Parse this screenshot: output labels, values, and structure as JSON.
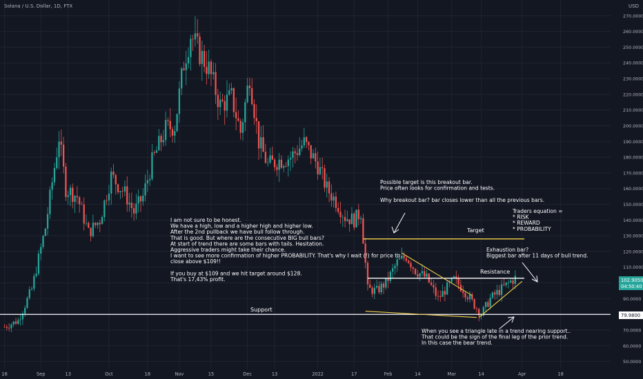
{
  "header": {
    "title": "Solana / U.S. Dollar, 1D, FTX"
  },
  "axis": {
    "currency": "USD"
  },
  "colors": {
    "background": "#131722",
    "up": "#26a69a",
    "down": "#ef5350",
    "grid": "#1f2433",
    "axis_text": "#b2b5be",
    "annotation_text": "#ffffff",
    "target_line": "#f5d14b",
    "triangle_line": "#f5d14b",
    "support_line": "#ffffff",
    "resistance_line": "#ffffff",
    "price_tag_bg": "#26a69a"
  },
  "price_labels": {
    "current": "102.9050",
    "countdown": "04:50:40",
    "support": "79.9800"
  },
  "annotations": {
    "support_label": "Support",
    "target_label": "Target",
    "resistance_label": "Resistance",
    "main_note": [
      "I am not sure to be honest.",
      "We have a high, low and a higher high and higher low.",
      "After the 2nd pullback we have bull follow through.",
      "That is good. But where are the consecutive BIG bull bars?",
      "At start of trend there are some bars with tails. Hesitation.",
      "Aggressive traders might take their chance.",
      "I want to see more confirmation of higher PROBABILITY. That's why I wait (!) for price to",
      "close above $109!!",
      "",
      "If you buy at $109 and we hit target around $128.",
      "That's 17,43% profit."
    ],
    "breakout_note": [
      "Possible target is this breakout bar.",
      "Price often looks for confirmation and tests.",
      "",
      "Why breakout bar? bar closes lower than all the previous bars."
    ],
    "equation_note": [
      "Traders equation =",
      "* RISK",
      "* REWARD",
      "* PROBABILITY"
    ],
    "exhaustion_note": [
      "Exhaustion bar?",
      "Biggest bar after 11 days of bull trend."
    ],
    "triangle_note": [
      "When you see a triangle late in a trend nearing support..",
      "That could be the sign of the final leg of the prior trend.",
      "In this case the bear trend."
    ]
  },
  "chart_data": {
    "type": "candlestick",
    "title": "Solana / U.S. Dollar, 1D, FTX",
    "y_axis": {
      "ylim": [
        45,
        280
      ],
      "ticks": [
        50,
        60,
        70,
        80,
        90,
        100,
        110,
        120,
        130,
        140,
        150,
        160,
        170,
        180,
        190,
        200,
        210,
        220,
        230,
        240,
        250,
        260,
        270
      ],
      "tick_labels": [
        "50.0000",
        "60.0000",
        "70.0000",
        "80.0000",
        "90.0000",
        "100.0000",
        "110.0000",
        "120.0000",
        "130.0000",
        "140.0000",
        "150.0000",
        "160.0000",
        "170.0000",
        "180.0000",
        "190.0000",
        "200.0000",
        "210.0000",
        "220.0000",
        "230.0000",
        "240.0000",
        "250.0000",
        "260.0000",
        "270.0000"
      ],
      "side": "right"
    },
    "x_axis": {
      "tick_labels": [
        "16",
        "Sep",
        "13",
        "Oct",
        "18",
        "Nov",
        "15",
        "Dec",
        "13",
        "2022",
        "17",
        "Feb",
        "14",
        "Mar",
        "14",
        "Apr",
        "18"
      ],
      "tick_dates": [
        "2021-08-16",
        "2021-09-01",
        "2021-09-13",
        "2021-10-01",
        "2021-10-18",
        "2021-11-01",
        "2021-11-15",
        "2021-12-01",
        "2021-12-13",
        "2022-01-01",
        "2022-01-17",
        "2022-02-01",
        "2022-02-14",
        "2022-03-01",
        "2022-03-14",
        "2022-04-01",
        "2022-04-18"
      ],
      "range": [
        "2021-08-14",
        "2022-05-10"
      ]
    },
    "series_path": [
      [
        "2021-08-16",
        72
      ],
      [
        "2021-08-22",
        76
      ],
      [
        "2021-08-28",
        96
      ],
      [
        "2021-09-03",
        135
      ],
      [
        "2021-09-09",
        193
      ],
      [
        "2021-09-12",
        160
      ],
      [
        "2021-09-17",
        155
      ],
      [
        "2021-09-22",
        132
      ],
      [
        "2021-09-27",
        140
      ],
      [
        "2021-10-02",
        168
      ],
      [
        "2021-10-08",
        157
      ],
      [
        "2021-10-12",
        145
      ],
      [
        "2021-10-16",
        155
      ],
      [
        "2021-10-20",
        177
      ],
      [
        "2021-10-26",
        198
      ],
      [
        "2021-10-30",
        200
      ],
      [
        "2021-11-03",
        240
      ],
      [
        "2021-11-06",
        258
      ],
      [
        "2021-11-09",
        249
      ],
      [
        "2021-11-14",
        236
      ],
      [
        "2021-11-19",
        213
      ],
      [
        "2021-11-24",
        218
      ],
      [
        "2021-11-28",
        196
      ],
      [
        "2021-12-02",
        232
      ],
      [
        "2021-12-06",
        190
      ],
      [
        "2021-12-10",
        175
      ],
      [
        "2021-12-15",
        178
      ],
      [
        "2021-12-20",
        180
      ],
      [
        "2021-12-26",
        189
      ],
      [
        "2022-01-01",
        175
      ],
      [
        "2022-01-05",
        160
      ],
      [
        "2022-01-09",
        152
      ],
      [
        "2022-01-13",
        142
      ],
      [
        "2022-01-17",
        140
      ],
      [
        "2022-01-20",
        145
      ],
      [
        "2022-01-23",
        96
      ],
      [
        "2022-01-27",
        95
      ],
      [
        "2022-01-31",
        100
      ],
      [
        "2022-02-05",
        113
      ],
      [
        "2022-02-09",
        117
      ],
      [
        "2022-02-13",
        108
      ],
      [
        "2022-02-18",
        103
      ],
      [
        "2022-02-23",
        90
      ],
      [
        "2022-02-27",
        97
      ],
      [
        "2022-03-02",
        102
      ],
      [
        "2022-03-06",
        96
      ],
      [
        "2022-03-10",
        88
      ],
      [
        "2022-03-14",
        80
      ],
      [
        "2022-03-18",
        90
      ],
      [
        "2022-03-22",
        95
      ],
      [
        "2022-03-27",
        101
      ],
      [
        "2022-03-29",
        103
      ]
    ],
    "levels": [
      {
        "name": "Support",
        "y": 79.98,
        "x_from": "2021-08-14",
        "x_to": "2022-05-10"
      },
      {
        "name": "Target",
        "y": 128,
        "x_from": "2022-01-21",
        "x_to": "2022-04-02"
      },
      {
        "name": "Resistance",
        "y": 103,
        "x_from": "2022-01-23",
        "x_to": "2022-04-02"
      }
    ],
    "trendlines": [
      {
        "name": "triangle-upper",
        "from": [
          "2022-02-07",
          119
        ],
        "to": [
          "2022-03-10",
          92
        ]
      },
      {
        "name": "triangle-lower",
        "from": [
          "2022-01-22",
          82
        ],
        "to": [
          "2022-03-12",
          78
        ]
      },
      {
        "name": "rising-support",
        "from": [
          "2022-03-13",
          78
        ],
        "to": [
          "2022-04-01",
          101
        ]
      }
    ],
    "last_price": 102.905
  }
}
